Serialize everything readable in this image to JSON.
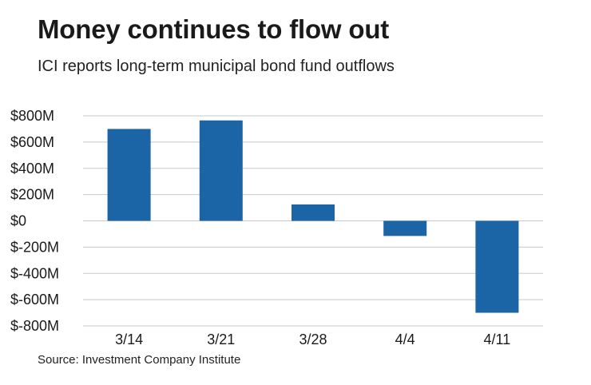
{
  "header": {
    "title": "Money continues to flow out",
    "subtitle": "ICI reports long-term municipal bond fund outflows"
  },
  "footer": {
    "source": "Source: Investment Company Institute"
  },
  "colors": {
    "bar": "#1b64a5",
    "grid": "#c8c8c8"
  },
  "chart_data": {
    "type": "bar",
    "title": "Money continues to flow out",
    "subtitle": "ICI reports long-term municipal bond fund outflows",
    "categories": [
      "3/14",
      "3/21",
      "3/28",
      "4/4",
      "4/11"
    ],
    "values": [
      700,
      765,
      125,
      -115,
      -700
    ],
    "unit": "millions of dollars",
    "ylim": [
      -800,
      800
    ],
    "yticks": [
      800,
      600,
      400,
      200,
      0,
      -200,
      -400,
      -600,
      -800
    ],
    "ytick_labels": [
      "$800M",
      "$600M",
      "$400M",
      "$200M",
      "$0",
      "$-200M",
      "$-400M",
      "$-600M",
      "$-800M"
    ],
    "xlabel": "",
    "ylabel": "",
    "grid": true,
    "legend": "none"
  }
}
